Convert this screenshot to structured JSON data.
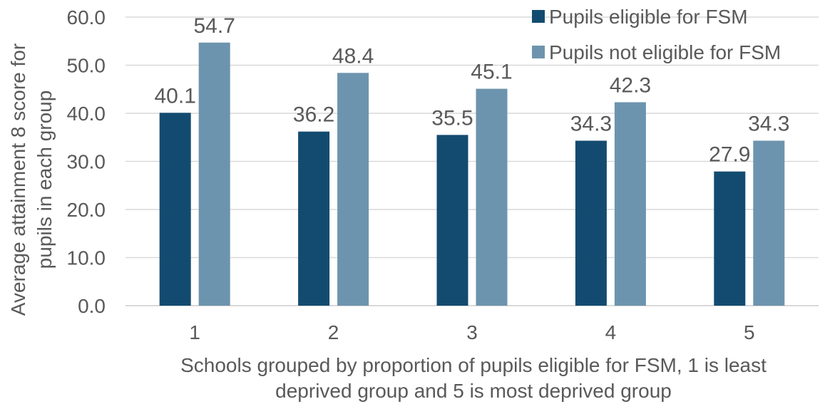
{
  "chart_data": {
    "type": "bar",
    "categories": [
      "1",
      "2",
      "3",
      "4",
      "5"
    ],
    "series": [
      {
        "name": "Pupils eligible for FSM",
        "color": "#134b70",
        "values": [
          40.1,
          36.2,
          35.5,
          34.3,
          27.9
        ]
      },
      {
        "name": "Pupils not eligible for FSM",
        "color": "#6d94ae",
        "values": [
          54.7,
          48.4,
          45.1,
          42.3,
          34.3
        ]
      }
    ],
    "data_labels": [
      [
        "40.1",
        "36.2",
        "35.5",
        "34.3",
        "27.9"
      ],
      [
        "54.7",
        "48.4",
        "45.1",
        "42.3",
        "34.3"
      ]
    ],
    "y_ticks": [
      "0.0",
      "10.0",
      "20.0",
      "30.0",
      "40.0",
      "50.0",
      "60.0"
    ],
    "ylim": [
      0,
      60
    ],
    "ylabel": [
      "Average attainment 8 score for",
      "pupils in each group"
    ],
    "xlabel": [
      "Schools grouped by proportion of pupils eligible for FSM, 1 is least",
      "deprived group and 5 is most deprived group"
    ],
    "grid": true,
    "legend_position": "top-right"
  }
}
